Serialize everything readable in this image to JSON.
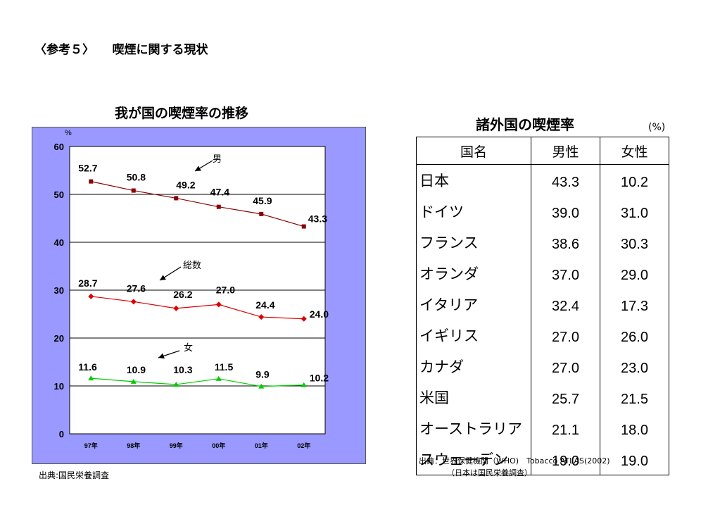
{
  "page": {
    "title": "〈参考５〉　　喫煙に関する現状"
  },
  "colors": {
    "plot_border": "#9999ff",
    "male": "#8b0000",
    "total": "#dd0000",
    "female": "#00cc00"
  },
  "left_source": "出典:国民栄養調査",
  "chart_data": {
    "type": "line",
    "title": "我が国の喫煙率の推移",
    "ylabel": "%",
    "ylim": [
      0,
      60
    ],
    "yticks": [
      "0",
      "10",
      "20",
      "30",
      "40",
      "50",
      "60"
    ],
    "categories": [
      "97年",
      "98年",
      "99年",
      "00年",
      "01年",
      "02年"
    ],
    "grid": true,
    "series": [
      {
        "name": "男",
        "values": [
          52.7,
          50.8,
          49.2,
          47.4,
          45.9,
          43.3
        ],
        "labels": [
          "52.7",
          "50.8",
          "49.2",
          "47.4",
          "45.9",
          "43.3"
        ],
        "marker": "square",
        "color": "#8b0000"
      },
      {
        "name": "総数",
        "values": [
          28.7,
          27.6,
          26.2,
          27.0,
          24.4,
          24.0
        ],
        "labels": [
          "28.7",
          "27.6",
          "26.2",
          "27.0",
          "24.4",
          "24.0"
        ],
        "marker": "diamond",
        "color": "#dd0000"
      },
      {
        "name": "女",
        "values": [
          11.6,
          10.9,
          10.3,
          11.5,
          9.9,
          10.2
        ],
        "labels": [
          "11.6",
          "10.9",
          "10.3",
          "11.5",
          "9.9",
          "10.2"
        ],
        "marker": "triangle",
        "color": "#00cc00"
      }
    ]
  },
  "table": {
    "title": "諸外国の喫煙率",
    "unit": "(%)",
    "headers": [
      "国名",
      "男性",
      "女性"
    ],
    "rows": [
      {
        "country": "日本",
        "male": "43.3",
        "female": "10.2"
      },
      {
        "country": "ドイツ",
        "male": "39.0",
        "female": "31.0"
      },
      {
        "country": "フランス",
        "male": "38.6",
        "female": "30.3"
      },
      {
        "country": "オランダ",
        "male": "37.0",
        "female": "29.0"
      },
      {
        "country": "イタリア",
        "male": "32.4",
        "female": "17.3"
      },
      {
        "country": "イギリス",
        "male": "27.0",
        "female": "26.0"
      },
      {
        "country": "カナダ",
        "male": "27.0",
        "female": "23.0"
      },
      {
        "country": "米国",
        "male": "25.7",
        "female": "21.5"
      },
      {
        "country": "オーストラリア",
        "male": "21.1",
        "female": "18.0"
      },
      {
        "country": "スウェーデン",
        "male": "19.0",
        "female": "19.0"
      }
    ],
    "source_line1": "出典：世界保健機関（WHO)　Tobacco ATLAS(2002)",
    "source_line2": "（日本は国民栄養調査）"
  }
}
